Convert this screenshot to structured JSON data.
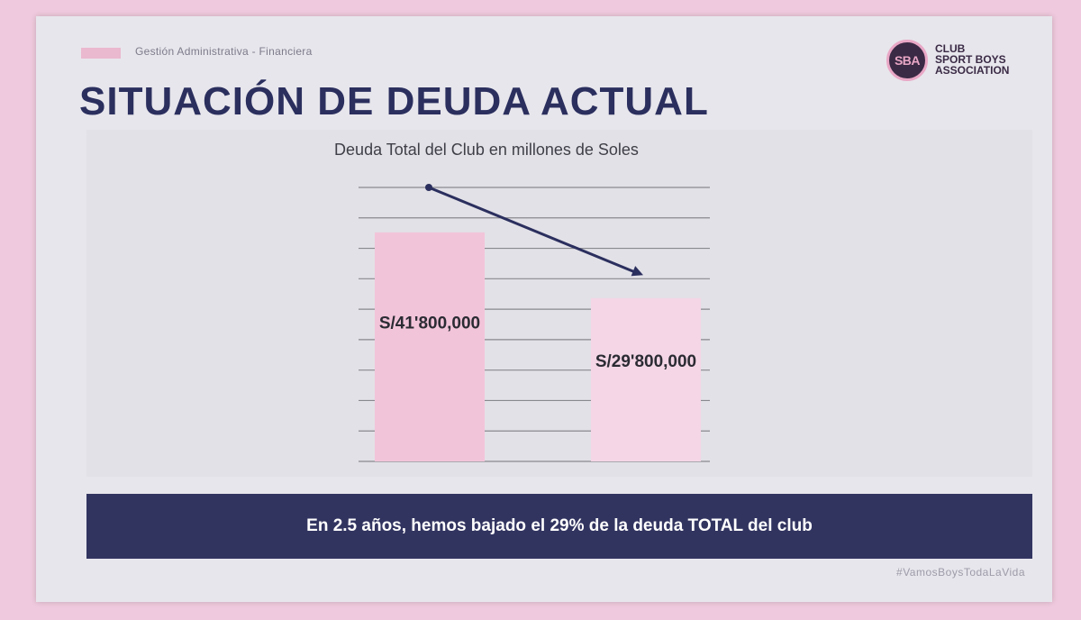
{
  "header": {
    "section": "Gestión Administrativa - Financiera",
    "title": "SITUACIÓN DE DEUDA ACTUAL"
  },
  "logo": {
    "badge": "SBA",
    "line1": "CLUB",
    "line2": "SPORT BOYS",
    "line3": "ASSOCIATION"
  },
  "chart_data": {
    "type": "bar",
    "title": "Deuda Total del Club en millones de Soles",
    "xlabel": "",
    "ylabel": "",
    "values": [
      41.8,
      29.8
    ],
    "value_labels": [
      "S/41'800,000",
      "S/29'800,000"
    ],
    "ylim": [
      0,
      50
    ],
    "grid": true,
    "legend": "none",
    "trend_arrow": {
      "from": 50,
      "to": 34
    },
    "colors": {
      "bar1": "#f2c4da",
      "bar2": "#f4d6e6",
      "arrow": "#2b2f5e"
    }
  },
  "banner": {
    "text": "En 2.5 años, hemos bajado el 29% de la deuda TOTAL del club"
  },
  "footer": {
    "hashtag": "#VamosBoysTodaLaVida"
  }
}
